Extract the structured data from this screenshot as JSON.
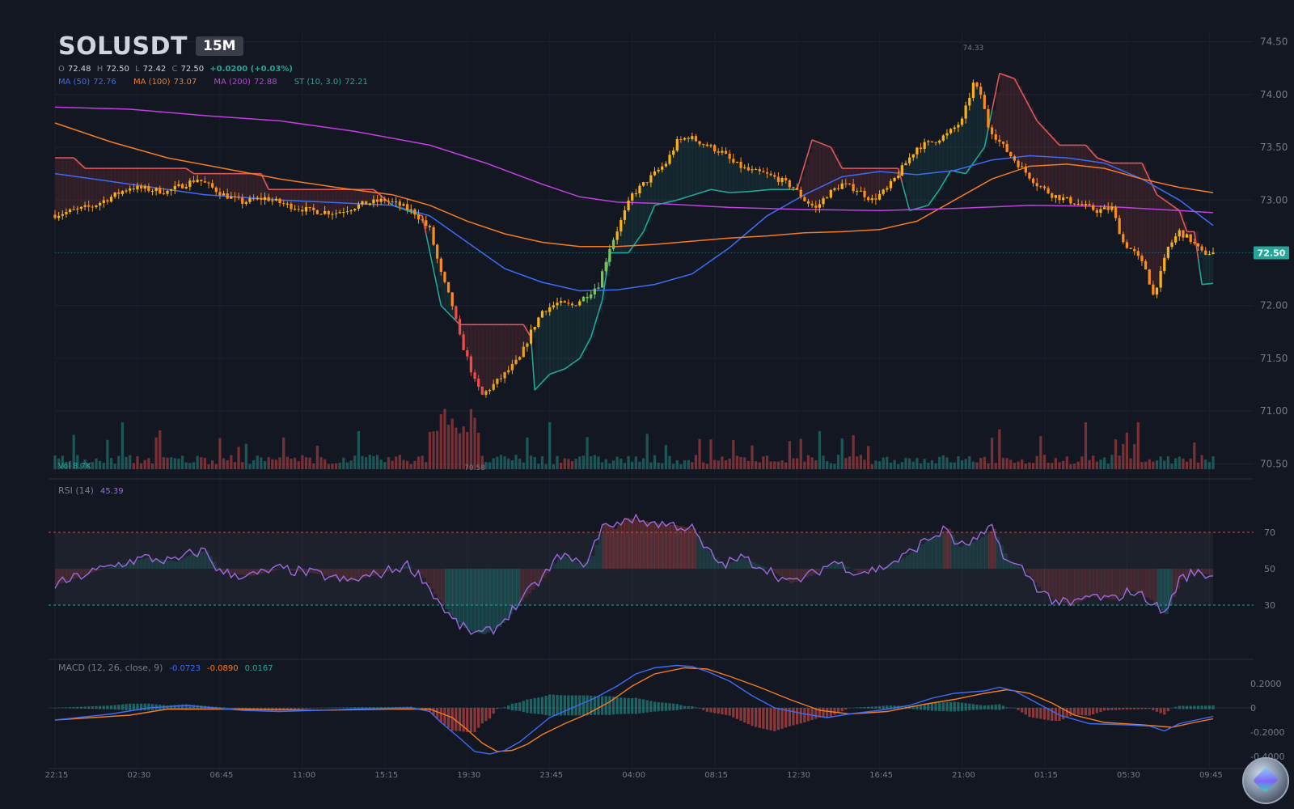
{
  "header": {
    "symbol": "SOLUSDT",
    "timeframe": "15M"
  },
  "ohlc": {
    "o_label": "O",
    "o": "72.48",
    "h_label": "H",
    "h": "72.50",
    "l_label": "L",
    "l": "72.42",
    "c_label": "C",
    "c": "72.50",
    "change": "+0.0200 (+0.03%)"
  },
  "indicators": {
    "ma50_label": "MA (50)",
    "ma50": "72.76",
    "ma100_label": "MA (100)",
    "ma100": "73.07",
    "ma200_label": "MA (200)",
    "ma200": "72.88",
    "st_label": "ST (10, 3.0)",
    "st": "72.21"
  },
  "volume": {
    "label": "Vol",
    "value": "8.7K"
  },
  "rsi": {
    "label": "RSI (14)",
    "value": "45.39",
    "levels": [
      30,
      50,
      70
    ]
  },
  "macd": {
    "label": "MACD (12, 26, close, 9)",
    "macd": "-0.0723",
    "signal": "-0.0890",
    "hist": "0.0167"
  },
  "annotations": {
    "high": "74.33",
    "low": "70.58",
    "last_price": "72.50"
  },
  "colors": {
    "background": "#131722",
    "up": "#26a69a",
    "down": "#ef5350",
    "ma50": "#3d6cf5",
    "ma100": "#f57c20",
    "ma200": "#c040e0",
    "rsi": "#9c6ade",
    "macd": "#3d6cf5",
    "signal": "#f57c20"
  },
  "chart_data": {
    "type": "candlestick",
    "price_axis": {
      "ticks": [
        "74.50",
        "74.00",
        "73.50",
        "73.00",
        "72.50",
        "72.00",
        "71.50",
        "71.00",
        "70.50"
      ],
      "range": [
        70.45,
        74.55
      ]
    },
    "rsi_axis": {
      "ticks": [
        "70",
        "50",
        "30"
      ]
    },
    "macd_axis": {
      "ticks": [
        "0.2000",
        "0",
        "-0.2000",
        "-0.4000"
      ]
    },
    "time_labels": [
      "22:15",
      "02:30",
      "06:45",
      "11:00",
      "15:15",
      "19:30",
      "23:45",
      "04:00",
      "08:15",
      "12:30",
      "16:45",
      "21:00",
      "01:15",
      "05:30",
      "09:45"
    ],
    "close_path": [
      [
        0,
        72.86
      ],
      [
        10,
        72.94
      ],
      [
        20,
        73.12
      ],
      [
        30,
        73.08
      ],
      [
        38,
        73.2
      ],
      [
        45,
        73.05
      ],
      [
        50,
        72.98
      ],
      [
        56,
        73.02
      ],
      [
        62,
        72.95
      ],
      [
        68,
        72.9
      ],
      [
        75,
        72.88
      ],
      [
        82,
        72.96
      ],
      [
        88,
        73.0
      ],
      [
        92,
        72.95
      ],
      [
        96,
        72.88
      ],
      [
        100,
        72.72
      ],
      [
        103,
        72.3
      ],
      [
        106,
        72.0
      ],
      [
        108,
        71.7
      ],
      [
        110,
        71.5
      ],
      [
        112,
        71.28
      ],
      [
        114,
        71.15
      ],
      [
        117,
        71.25
      ],
      [
        120,
        71.35
      ],
      [
        124,
        71.5
      ],
      [
        127,
        71.75
      ],
      [
        130,
        71.95
      ],
      [
        134,
        72.02
      ],
      [
        138,
        72.0
      ],
      [
        142,
        72.1
      ],
      [
        145,
        72.2
      ],
      [
        148,
        72.55
      ],
      [
        151,
        72.8
      ],
      [
        154,
        73.05
      ],
      [
        157,
        73.15
      ],
      [
        160,
        73.25
      ],
      [
        163,
        73.35
      ],
      [
        166,
        73.55
      ],
      [
        169,
        73.6
      ],
      [
        172,
        73.55
      ],
      [
        175,
        73.5
      ],
      [
        178,
        73.45
      ],
      [
        181,
        73.35
      ],
      [
        185,
        73.28
      ],
      [
        189,
        73.25
      ],
      [
        193,
        73.2
      ],
      [
        197,
        73.12
      ],
      [
        200,
        73.0
      ],
      [
        203,
        72.92
      ],
      [
        206,
        73.05
      ],
      [
        210,
        73.15
      ],
      [
        214,
        73.1
      ],
      [
        218,
        73.0
      ],
      [
        222,
        73.1
      ],
      [
        226,
        73.3
      ],
      [
        230,
        73.5
      ],
      [
        234,
        73.55
      ],
      [
        238,
        73.62
      ],
      [
        242,
        73.75
      ],
      [
        245,
        74.1
      ],
      [
        247,
        74.0
      ],
      [
        249,
        73.7
      ],
      [
        252,
        73.55
      ],
      [
        255,
        73.42
      ],
      [
        258,
        73.3
      ],
      [
        262,
        73.15
      ],
      [
        266,
        73.05
      ],
      [
        270,
        73.0
      ],
      [
        274,
        72.95
      ],
      [
        278,
        72.9
      ],
      [
        282,
        72.92
      ],
      [
        285,
        72.6
      ],
      [
        288,
        72.5
      ],
      [
        291,
        72.35
      ],
      [
        293,
        72.1
      ],
      [
        295,
        72.3
      ],
      [
        297,
        72.55
      ],
      [
        300,
        72.7
      ],
      [
        303,
        72.62
      ],
      [
        306,
        72.5
      ],
      [
        309,
        72.5
      ]
    ],
    "series": [
      {
        "name": "MA (50)",
        "values": [
          [
            0,
            73.25
          ],
          [
            40,
            73.05
          ],
          [
            60,
            73.0
          ],
          [
            90,
            72.95
          ],
          [
            100,
            72.85
          ],
          [
            110,
            72.6
          ],
          [
            120,
            72.35
          ],
          [
            130,
            72.22
          ],
          [
            140,
            72.14
          ],
          [
            150,
            72.15
          ],
          [
            160,
            72.2
          ],
          [
            170,
            72.3
          ],
          [
            180,
            72.55
          ],
          [
            190,
            72.85
          ],
          [
            200,
            73.05
          ],
          [
            210,
            73.22
          ],
          [
            220,
            73.27
          ],
          [
            230,
            73.24
          ],
          [
            240,
            73.28
          ],
          [
            250,
            73.38
          ],
          [
            260,
            73.42
          ],
          [
            270,
            73.4
          ],
          [
            280,
            73.35
          ],
          [
            290,
            73.2
          ],
          [
            300,
            73.0
          ],
          [
            309,
            72.76
          ]
        ]
      },
      {
        "name": "MA (100)",
        "values": [
          [
            0,
            73.73
          ],
          [
            15,
            73.55
          ],
          [
            30,
            73.4
          ],
          [
            45,
            73.3
          ],
          [
            60,
            73.2
          ],
          [
            75,
            73.12
          ],
          [
            90,
            73.05
          ],
          [
            100,
            72.95
          ],
          [
            110,
            72.8
          ],
          [
            120,
            72.68
          ],
          [
            130,
            72.6
          ],
          [
            140,
            72.56
          ],
          [
            150,
            72.56
          ],
          [
            160,
            72.58
          ],
          [
            170,
            72.61
          ],
          [
            180,
            72.64
          ],
          [
            190,
            72.66
          ],
          [
            200,
            72.69
          ],
          [
            210,
            72.7
          ],
          [
            220,
            72.72
          ],
          [
            230,
            72.8
          ],
          [
            240,
            73.0
          ],
          [
            250,
            73.2
          ],
          [
            260,
            73.32
          ],
          [
            270,
            73.34
          ],
          [
            280,
            73.3
          ],
          [
            290,
            73.2
          ],
          [
            300,
            73.12
          ],
          [
            309,
            73.07
          ]
        ]
      },
      {
        "name": "MA (200)",
        "values": [
          [
            0,
            73.88
          ],
          [
            20,
            73.86
          ],
          [
            40,
            73.8
          ],
          [
            60,
            73.75
          ],
          [
            80,
            73.65
          ],
          [
            100,
            73.52
          ],
          [
            115,
            73.35
          ],
          [
            130,
            73.15
          ],
          [
            140,
            73.03
          ],
          [
            150,
            72.98
          ],
          [
            160,
            72.97
          ],
          [
            180,
            72.93
          ],
          [
            200,
            72.91
          ],
          [
            220,
            72.9
          ],
          [
            240,
            72.92
          ],
          [
            260,
            72.95
          ],
          [
            280,
            72.94
          ],
          [
            300,
            72.9
          ],
          [
            309,
            72.88
          ]
        ]
      },
      {
        "name": "ST (10, 3.0)",
        "values": [
          [
            0,
            73.4
          ],
          [
            5,
            73.4
          ],
          [
            8,
            73.3
          ],
          [
            35,
            73.3
          ],
          [
            37,
            73.25
          ],
          [
            55,
            73.25
          ],
          [
            57,
            73.1
          ],
          [
            85,
            73.1
          ],
          [
            90,
            72.95
          ],
          [
            98,
            72.85
          ],
          [
            103,
            72.0
          ],
          [
            108,
            71.82
          ],
          [
            116,
            71.82
          ],
          [
            125,
            71.82
          ],
          [
            127,
            71.7
          ],
          [
            128,
            71.2
          ],
          [
            132,
            71.35
          ],
          [
            136,
            71.4
          ],
          [
            140,
            71.5
          ],
          [
            143,
            71.7
          ],
          [
            146,
            72.05
          ],
          [
            148,
            72.5
          ],
          [
            153,
            72.5
          ],
          [
            157,
            72.7
          ],
          [
            160,
            72.95
          ],
          [
            166,
            73.0
          ],
          [
            175,
            73.1
          ],
          [
            180,
            73.07
          ],
          [
            185,
            73.08
          ],
          [
            191,
            73.1
          ],
          [
            198,
            73.1
          ],
          [
            202,
            73.57
          ],
          [
            207,
            73.5
          ],
          [
            210,
            73.3
          ],
          [
            225,
            73.3
          ],
          [
            228,
            72.9
          ],
          [
            233,
            72.95
          ],
          [
            236,
            73.1
          ],
          [
            239,
            73.28
          ],
          [
            243,
            73.25
          ],
          [
            248,
            73.5
          ],
          [
            252,
            74.2
          ],
          [
            256,
            74.15
          ],
          [
            262,
            73.75
          ],
          [
            268,
            73.52
          ],
          [
            275,
            73.52
          ],
          [
            278,
            73.4
          ],
          [
            282,
            73.35
          ],
          [
            290,
            73.35
          ],
          [
            294,
            73.05
          ],
          [
            300,
            72.9
          ],
          [
            302,
            72.7
          ],
          [
            304,
            72.7
          ],
          [
            306,
            72.2
          ],
          [
            309,
            72.21
          ]
        ]
      }
    ],
    "rsi_path": [
      [
        0,
        41
      ],
      [
        8,
        47
      ],
      [
        16,
        52
      ],
      [
        24,
        56
      ],
      [
        32,
        54
      ],
      [
        36,
        58
      ],
      [
        40,
        60
      ],
      [
        44,
        48
      ],
      [
        52,
        46
      ],
      [
        60,
        50
      ],
      [
        70,
        47
      ],
      [
        78,
        43
      ],
      [
        86,
        47
      ],
      [
        94,
        52
      ],
      [
        98,
        45
      ],
      [
        102,
        33
      ],
      [
        106,
        22
      ],
      [
        110,
        16
      ],
      [
        114,
        14
      ],
      [
        118,
        18
      ],
      [
        124,
        32
      ],
      [
        130,
        45
      ],
      [
        135,
        58
      ],
      [
        140,
        52
      ],
      [
        143,
        57
      ],
      [
        146,
        75
      ],
      [
        149,
        72
      ],
      [
        152,
        78
      ],
      [
        160,
        75
      ],
      [
        165,
        74
      ],
      [
        170,
        72
      ],
      [
        173,
        62
      ],
      [
        178,
        52
      ],
      [
        183,
        56
      ],
      [
        190,
        50
      ],
      [
        196,
        42
      ],
      [
        202,
        47
      ],
      [
        208,
        54
      ],
      [
        214,
        48
      ],
      [
        220,
        50
      ],
      [
        226,
        56
      ],
      [
        232,
        65
      ],
      [
        238,
        72
      ],
      [
        241,
        62
      ],
      [
        246,
        66
      ],
      [
        250,
        72
      ],
      [
        254,
        54
      ],
      [
        258,
        50
      ],
      [
        262,
        40
      ],
      [
        266,
        33
      ],
      [
        271,
        30
      ],
      [
        276,
        35
      ],
      [
        282,
        33
      ],
      [
        287,
        38
      ],
      [
        292,
        33
      ],
      [
        296,
        25
      ],
      [
        300,
        44
      ],
      [
        304,
        48
      ],
      [
        309,
        46
      ]
    ],
    "macd_path": [
      [
        0,
        -0.1
      ],
      [
        15,
        -0.05
      ],
      [
        25,
        0.0
      ],
      [
        35,
        0.02
      ],
      [
        50,
        -0.02
      ],
      [
        60,
        -0.03
      ],
      [
        80,
        -0.01
      ],
      [
        95,
        0.0
      ],
      [
        100,
        -0.03
      ],
      [
        103,
        -0.12
      ],
      [
        108,
        -0.25
      ],
      [
        112,
        -0.36
      ],
      [
        116,
        -0.38
      ],
      [
        120,
        -0.35
      ],
      [
        124,
        -0.28
      ],
      [
        128,
        -0.18
      ],
      [
        132,
        -0.08
      ],
      [
        138,
        0.0
      ],
      [
        144,
        0.08
      ],
      [
        150,
        0.18
      ],
      [
        155,
        0.28
      ],
      [
        160,
        0.33
      ],
      [
        166,
        0.35
      ],
      [
        170,
        0.34
      ],
      [
        174,
        0.3
      ],
      [
        180,
        0.22
      ],
      [
        186,
        0.1
      ],
      [
        192,
        0.0
      ],
      [
        200,
        -0.05
      ],
      [
        206,
        -0.08
      ],
      [
        212,
        -0.05
      ],
      [
        220,
        -0.02
      ],
      [
        228,
        0.02
      ],
      [
        234,
        0.08
      ],
      [
        240,
        0.12
      ],
      [
        248,
        0.14
      ],
      [
        252,
        0.17
      ],
      [
        256,
        0.14
      ],
      [
        262,
        0.04
      ],
      [
        268,
        -0.06
      ],
      [
        276,
        -0.13
      ],
      [
        286,
        -0.14
      ],
      [
        292,
        -0.15
      ],
      [
        296,
        -0.19
      ],
      [
        300,
        -0.13
      ],
      [
        306,
        -0.09
      ],
      [
        309,
        -0.07
      ]
    ],
    "signal_path": [
      [
        0,
        -0.1
      ],
      [
        20,
        -0.06
      ],
      [
        30,
        -0.01
      ],
      [
        50,
        -0.01
      ],
      [
        70,
        -0.02
      ],
      [
        90,
        -0.01
      ],
      [
        100,
        -0.01
      ],
      [
        106,
        -0.08
      ],
      [
        110,
        -0.18
      ],
      [
        114,
        -0.29
      ],
      [
        118,
        -0.36
      ],
      [
        122,
        -0.35
      ],
      [
        126,
        -0.3
      ],
      [
        130,
        -0.22
      ],
      [
        136,
        -0.13
      ],
      [
        142,
        -0.05
      ],
      [
        148,
        0.05
      ],
      [
        154,
        0.18
      ],
      [
        160,
        0.28
      ],
      [
        168,
        0.33
      ],
      [
        174,
        0.32
      ],
      [
        180,
        0.26
      ],
      [
        188,
        0.17
      ],
      [
        196,
        0.07
      ],
      [
        204,
        -0.02
      ],
      [
        212,
        -0.05
      ],
      [
        222,
        -0.03
      ],
      [
        232,
        0.03
      ],
      [
        240,
        0.07
      ],
      [
        248,
        0.12
      ],
      [
        254,
        0.15
      ],
      [
        260,
        0.12
      ],
      [
        266,
        0.04
      ],
      [
        272,
        -0.06
      ],
      [
        280,
        -0.12
      ],
      [
        290,
        -0.14
      ],
      [
        298,
        -0.16
      ],
      [
        304,
        -0.12
      ],
      [
        309,
        -0.09
      ]
    ]
  }
}
